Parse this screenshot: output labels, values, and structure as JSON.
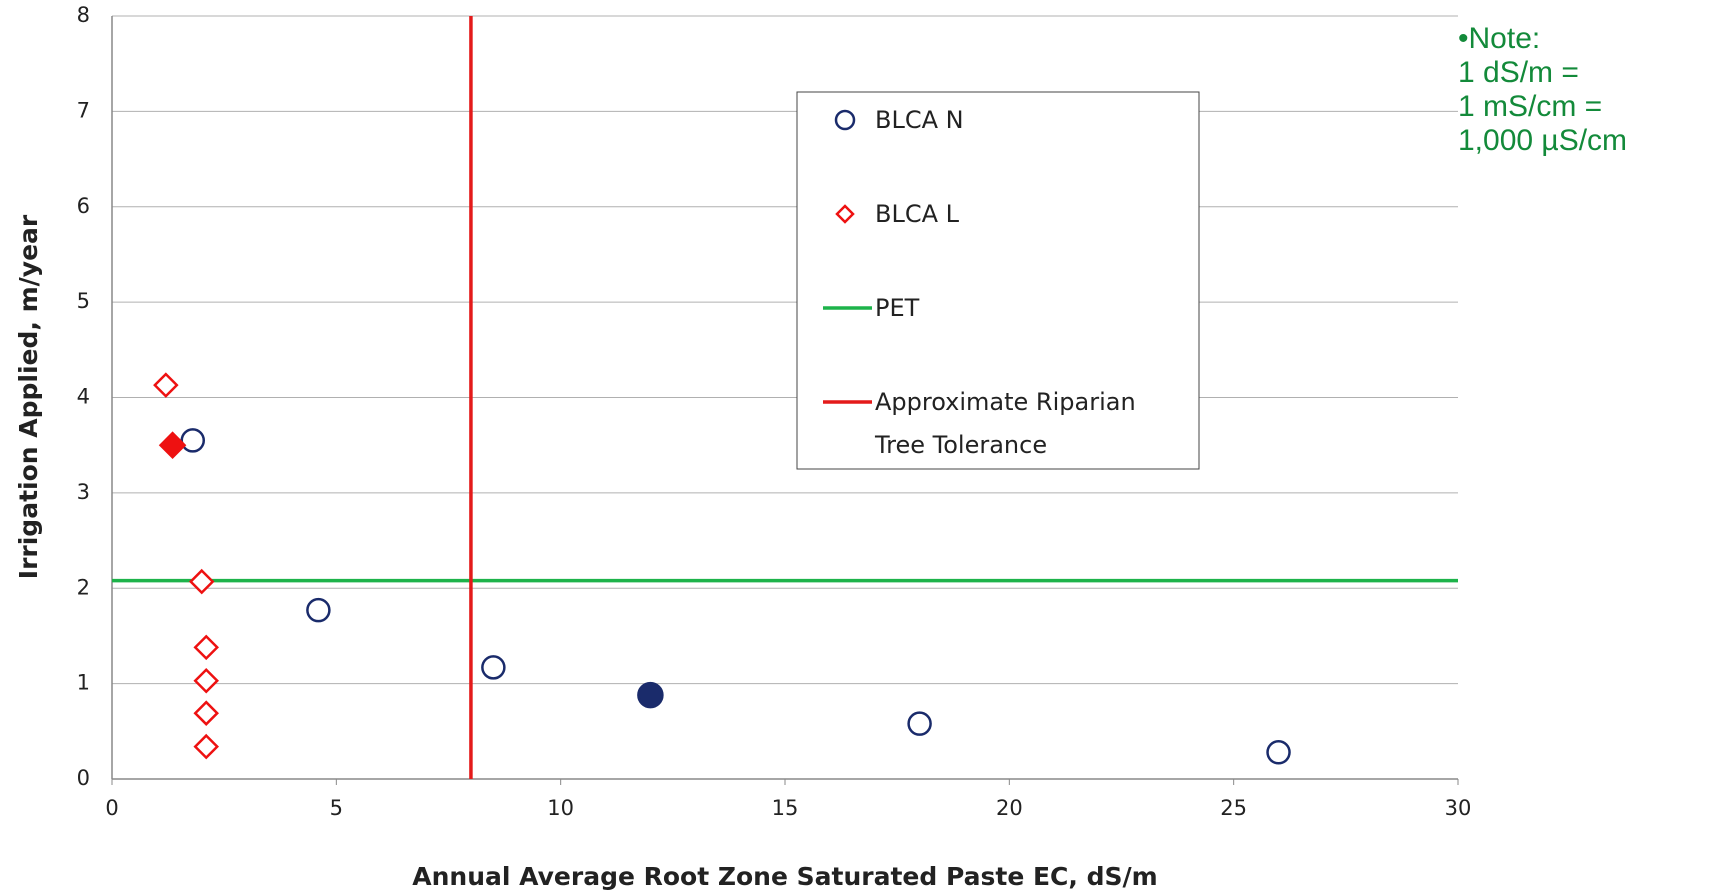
{
  "chart_data": {
    "type": "scatter",
    "xlabel": "Annual Average Root Zone Saturated Paste EC, dS/m",
    "ylabel": "Irrigation Applied, m/year",
    "xlim": [
      0,
      30
    ],
    "xticks": [
      0,
      5,
      10,
      15,
      20,
      25,
      30
    ],
    "ylim": [
      0,
      8
    ],
    "yticks": [
      0,
      1,
      2,
      3,
      4,
      5,
      6,
      7,
      8
    ],
    "grid": true,
    "series": [
      {
        "name": "BLCA N",
        "color": "#1a2b6b",
        "marker": "circle",
        "x": [
          1.8,
          4.6,
          8.5,
          12,
          18,
          26
        ],
        "values": [
          3.55,
          1.77,
          1.17,
          0.88,
          0.58,
          0.28
        ],
        "filled": [
          false,
          false,
          false,
          true,
          false,
          false
        ]
      },
      {
        "name": "BLCA L",
        "color": "#ee1111",
        "marker": "diamond",
        "x": [
          1.2,
          1.35,
          2.0,
          2.1,
          2.1,
          2.1,
          2.1
        ],
        "values": [
          4.13,
          3.5,
          2.07,
          1.38,
          1.03,
          0.69,
          0.34
        ],
        "filled": [
          false,
          true,
          false,
          false,
          false,
          false,
          false
        ]
      }
    ],
    "reference_lines": [
      {
        "name": "PET",
        "orientation": "horizontal",
        "value": 2.08,
        "color": "#1db34a"
      },
      {
        "name": "Approximate Riparian Tree Tolerance",
        "orientation": "vertical",
        "value": 8,
        "color": "#e41a1a"
      }
    ],
    "note": [
      "•Note:",
      "1 dS/m =",
      "1 mS/cm =",
      "1,000 µS/cm"
    ],
    "note_color": "#138a3a"
  }
}
